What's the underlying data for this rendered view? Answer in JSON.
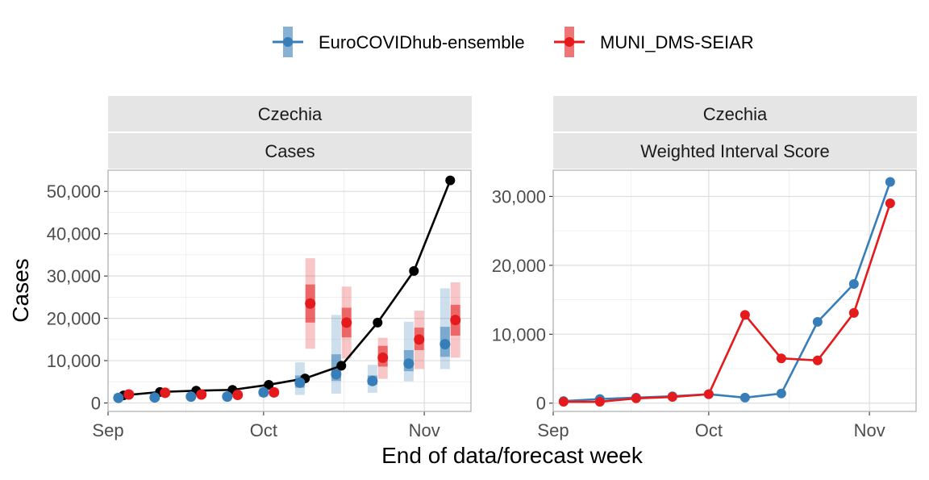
{
  "figure": {
    "ylabel": "Cases",
    "xlabel": "End of data/forecast week"
  },
  "legend": {
    "placement": "top",
    "items": [
      {
        "name": "EuroCOVIDhub-ensemble",
        "color": "#377eb8"
      },
      {
        "name": "MUNI_DMS-SEIAR",
        "color": "#e41a1c"
      }
    ]
  },
  "colors": {
    "observed": "#000000",
    "ensemble": "#377eb8",
    "muni": "#e41a1c",
    "strip_bg": "#e5e5e5",
    "grid": "#ebebeb",
    "panel_border": "#b3b3b3"
  },
  "chart_data": [
    {
      "type": "line",
      "strip": [
        "Czechia",
        "Cases"
      ],
      "xlim": [
        "2021-09-01",
        "2021-11-10"
      ],
      "ylim": [
        -2000,
        55000
      ],
      "xticks": [
        {
          "date": "2021-09-01",
          "label": "Sep"
        },
        {
          "date": "2021-10-01",
          "label": "Oct"
        },
        {
          "date": "2021-11-01",
          "label": "Nov"
        }
      ],
      "yticks": [
        {
          "value": 0,
          "label": "0"
        },
        {
          "value": 10000,
          "label": "10,000"
        },
        {
          "value": 20000,
          "label": "20,000"
        },
        {
          "value": 30000,
          "label": "30,000"
        },
        {
          "value": 40000,
          "label": "40,000"
        },
        {
          "value": 50000,
          "label": "50,000"
        }
      ],
      "observed": {
        "dates": [
          "2021-09-04",
          "2021-09-11",
          "2021-09-18",
          "2021-09-25",
          "2021-10-02",
          "2021-10-09",
          "2021-10-16",
          "2021-10-23",
          "2021-10-30",
          "2021-11-06"
        ],
        "values": [
          1800,
          2600,
          2900,
          3100,
          4300,
          5800,
          8800,
          19000,
          31200,
          52600
        ]
      },
      "forecasts": [
        {
          "series": "EuroCOVIDhub-ensemble",
          "dates": [
            "2021-09-03",
            "2021-09-10",
            "2021-09-17",
            "2021-09-24",
            "2021-10-01",
            "2021-10-08",
            "2021-10-15",
            "2021-10-22",
            "2021-10-29",
            "2021-11-05"
          ],
          "median": [
            1200,
            1300,
            1500,
            1500,
            2500,
            4800,
            6800,
            5200,
            9300,
            13900
          ],
          "q50": [
            [
              900,
              1600
            ],
            [
              1000,
              1700
            ],
            [
              1100,
              1800
            ],
            [
              1200,
              1900
            ],
            [
              2000,
              3000
            ],
            [
              3600,
              6500
            ],
            [
              5200,
              11500
            ],
            [
              4300,
              6500
            ],
            [
              7500,
              12500
            ],
            [
              10900,
              18000
            ]
          ],
          "q95": [
            [
              600,
              2200
            ],
            [
              700,
              2300
            ],
            [
              800,
              2400
            ],
            [
              900,
              2500
            ],
            [
              1400,
              4000
            ],
            [
              1900,
              9600
            ],
            [
              2200,
              20800
            ],
            [
              2400,
              9000
            ],
            [
              5100,
              19200
            ],
            [
              8000,
              27100
            ]
          ]
        },
        {
          "series": "MUNI_DMS-SEIAR",
          "dates": [
            "2021-09-05",
            "2021-09-12",
            "2021-09-19",
            "2021-09-26",
            "2021-10-03",
            "2021-10-10",
            "2021-10-17",
            "2021-10-24",
            "2021-10-31",
            "2021-11-07"
          ],
          "median": [
            2000,
            2400,
            2000,
            1900,
            2500,
            23500,
            19000,
            10700,
            15000,
            19600
          ],
          "q50": [
            [
              1700,
              2300
            ],
            [
              2000,
              2800
            ],
            [
              1700,
              2400
            ],
            [
              1600,
              2200
            ],
            [
              2100,
              2900
            ],
            [
              19000,
              28000
            ],
            [
              15500,
              22500
            ],
            [
              8600,
              13500
            ],
            [
              12500,
              17800
            ],
            [
              15900,
              23200
            ]
          ],
          "q95": [
            [
              1300,
              2900
            ],
            [
              1600,
              3500
            ],
            [
              1300,
              3000
            ],
            [
              1200,
              2900
            ],
            [
              1600,
              3600
            ],
            [
              12800,
              34200
            ],
            [
              10500,
              27500
            ],
            [
              5700,
              15400
            ],
            [
              8000,
              21800
            ],
            [
              10700,
              28500
            ]
          ]
        }
      ]
    },
    {
      "type": "line",
      "strip": [
        "Czechia",
        "Weighted Interval Score"
      ],
      "xlim": [
        "2021-09-01",
        "2021-11-10"
      ],
      "ylim": [
        -1200,
        33800
      ],
      "xticks": [
        {
          "date": "2021-09-01",
          "label": "Sep"
        },
        {
          "date": "2021-10-01",
          "label": "Oct"
        },
        {
          "date": "2021-11-01",
          "label": "Nov"
        }
      ],
      "yticks": [
        {
          "value": 0,
          "label": "0"
        },
        {
          "value": 10000,
          "label": "10,000"
        },
        {
          "value": 20000,
          "label": "20,000"
        },
        {
          "value": 30000,
          "label": "30,000"
        }
      ],
      "series": [
        {
          "name": "EuroCOVIDhub-ensemble",
          "dates": [
            "2021-09-03",
            "2021-09-10",
            "2021-09-17",
            "2021-09-24",
            "2021-10-01",
            "2021-10-08",
            "2021-10-15",
            "2021-10-22",
            "2021-10-29",
            "2021-11-05"
          ],
          "values": [
            300,
            600,
            800,
            1000,
            1300,
            800,
            1400,
            11800,
            17300,
            32100
          ]
        },
        {
          "name": "MUNI_DMS-SEIAR",
          "dates": [
            "2021-09-03",
            "2021-09-10",
            "2021-09-17",
            "2021-09-24",
            "2021-10-01",
            "2021-10-08",
            "2021-10-15",
            "2021-10-22",
            "2021-10-29",
            "2021-11-05"
          ],
          "values": [
            200,
            200,
            700,
            900,
            1300,
            12800,
            6500,
            6200,
            13100,
            29000
          ]
        }
      ]
    }
  ]
}
